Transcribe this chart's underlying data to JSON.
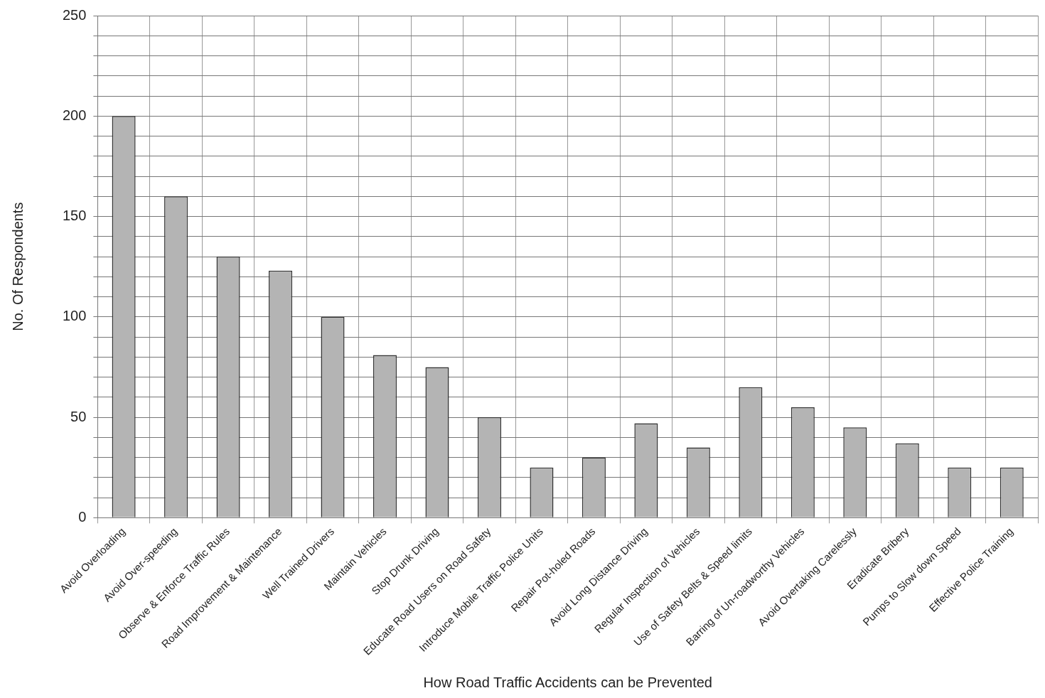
{
  "chart_data": {
    "type": "bar",
    "xlabel": "How Road Traffic Accidents can be Prevented",
    "ylabel": "No. Of Respondents",
    "categories": [
      "Avoid Overloading",
      "Avoid Over-speeding",
      "Observe & Enforce Traffic Rules",
      "Road Improvement & Maintenance",
      "Well Trained Drivers",
      "Maintain Vehicles",
      "Stop Drunk Driving",
      "Educate Road Users on Road Safety",
      "Introduce Mobile Traffic Police Units",
      "Repair Pot-holed Roads",
      "Avoid Long Distance Driving",
      "Regular Inspection of Vehicles",
      "Use of Safety Belts & Speed limits",
      "Barring of Un-roadworthy Vehicles",
      "Avoid Overtaking Carelessly",
      "Eradicate Bribery",
      "Pumps to Slow down Speed",
      "Effective Police Training"
    ],
    "values": [
      200,
      160,
      130,
      123,
      100,
      81,
      75,
      50,
      25,
      30,
      47,
      35,
      65,
      55,
      45,
      37,
      25,
      25
    ],
    "color": "#b4b4b4",
    "ylim": [
      0,
      250
    ],
    "yticks": [
      0,
      {
        "value": 10,
        "label": null
      },
      {
        "value": 20,
        "label": null
      },
      {
        "value": 30,
        "label": null
      },
      {
        "value": 40,
        "label": null
      },
      50,
      {
        "value": 60,
        "label": null
      },
      {
        "value": 70,
        "label": null
      },
      {
        "value": 80,
        "label": null
      },
      {
        "value": 90,
        "label": null
      },
      100,
      {
        "value": 110,
        "label": null
      },
      {
        "value": 120,
        "label": null
      },
      {
        "value": 130,
        "label": null
      },
      {
        "value": 140,
        "label": null
      },
      150,
      {
        "value": 160,
        "label": null
      },
      {
        "value": 170,
        "label": null
      },
      {
        "value": 180,
        "label": null
      },
      {
        "value": 190,
        "label": null
      },
      200,
      {
        "value": 210,
        "label": null
      },
      {
        "value": 220,
        "label": null
      },
      {
        "value": 230,
        "label": null
      },
      {
        "value": 240,
        "label": null
      },
      250
    ],
    "grid": true,
    "legend": false
  }
}
